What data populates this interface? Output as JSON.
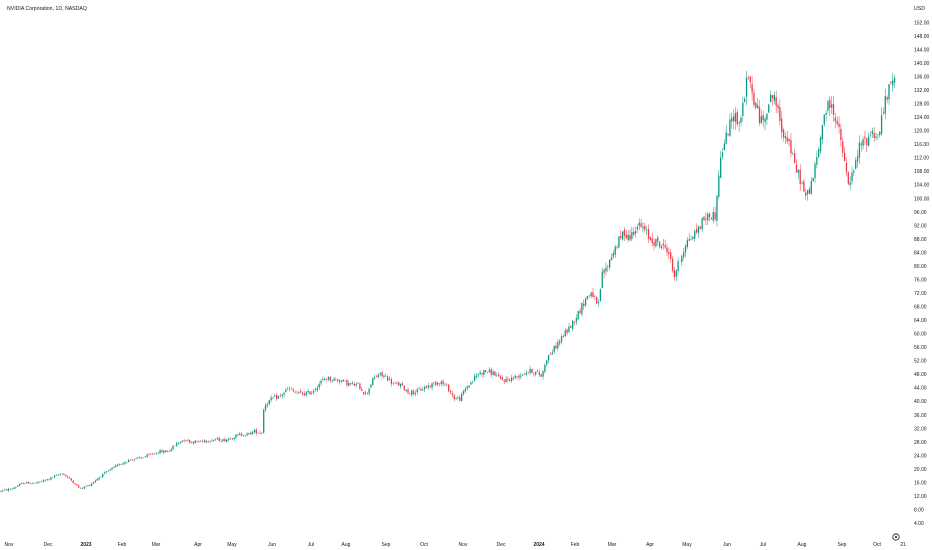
{
  "chart_data": {
    "type": "candlestick",
    "title": "NVIDIA Corporation, 1D, NASDAQ",
    "currency": "USD",
    "colors": {
      "up": "#089981",
      "down": "#f23645",
      "text": "#131722"
    },
    "y_ticks": [
      4,
      8,
      12,
      16,
      20,
      24,
      28,
      32,
      36,
      40,
      44,
      48,
      52,
      56,
      60,
      64,
      68,
      72,
      76,
      80,
      84,
      88,
      92,
      96,
      100,
      104,
      108,
      112,
      116,
      120,
      124,
      128,
      132,
      136,
      140,
      144,
      148,
      152
    ],
    "ylim": [
      2,
      156
    ],
    "x_ticks": [
      "Nov",
      "Dec",
      "2023",
      "Feb",
      "Mar",
      "Apr",
      "May",
      "Jun",
      "Jul",
      "Aug",
      "Sep",
      "Oct",
      "Nov",
      "Dec",
      "2024",
      "Feb",
      "Mar",
      "Apr",
      "May",
      "Jun",
      "Jul",
      "Aug",
      "Sep",
      "Oct",
      "21"
    ],
    "x_bold": [
      "2023",
      "2024"
    ],
    "price_path": [
      [
        0,
        13.5
      ],
      [
        12,
        14.2
      ],
      [
        24,
        16.0
      ],
      [
        36,
        15.8
      ],
      [
        48,
        17.0
      ],
      [
        62,
        18.8
      ],
      [
        72,
        16.5
      ],
      [
        80,
        14.2
      ],
      [
        90,
        15.4
      ],
      [
        100,
        17.8
      ],
      [
        110,
        19.8
      ],
      [
        120,
        21.5
      ],
      [
        130,
        22.8
      ],
      [
        140,
        23.2
      ],
      [
        150,
        24.2
      ],
      [
        160,
        25.2
      ],
      [
        168,
        25.2
      ],
      [
        176,
        27.4
      ],
      [
        184,
        28.8
      ],
      [
        192,
        28.0
      ],
      [
        200,
        28.2
      ],
      [
        208,
        28.5
      ],
      [
        216,
        28.8
      ],
      [
        224,
        28.5
      ],
      [
        232,
        29.4
      ],
      [
        240,
        30.2
      ],
      [
        248,
        30.2
      ],
      [
        254,
        31.2
      ],
      [
        260,
        30.8
      ],
      [
        262,
        31.0
      ],
      [
        264,
        38.8
      ],
      [
        272,
        40.8
      ],
      [
        280,
        41.5
      ],
      [
        288,
        43.8
      ],
      [
        296,
        42.5
      ],
      [
        304,
        42.2
      ],
      [
        312,
        42.8
      ],
      [
        320,
        45.5
      ],
      [
        326,
        47.0
      ],
      [
        332,
        46.5
      ],
      [
        340,
        46.3
      ],
      [
        350,
        45.0
      ],
      [
        358,
        44.8
      ],
      [
        366,
        42.0
      ],
      [
        372,
        46.0
      ],
      [
        378,
        48.0
      ],
      [
        386,
        47.3
      ],
      [
        394,
        45.0
      ],
      [
        400,
        45.0
      ],
      [
        408,
        42.8
      ],
      [
        416,
        42.8
      ],
      [
        424,
        44.0
      ],
      [
        432,
        45.0
      ],
      [
        440,
        46.0
      ],
      [
        448,
        44.0
      ],
      [
        454,
        41.0
      ],
      [
        460,
        40.8
      ],
      [
        466,
        44.0
      ],
      [
        472,
        46.0
      ],
      [
        478,
        48.2
      ],
      [
        486,
        49.0
      ],
      [
        494,
        48.3
      ],
      [
        500,
        46.5
      ],
      [
        506,
        46.3
      ],
      [
        514,
        47.0
      ],
      [
        520,
        47.8
      ],
      [
        526,
        48.8
      ],
      [
        532,
        49.0
      ],
      [
        538,
        48.2
      ],
      [
        542,
        47.5
      ],
      [
        546,
        52.5
      ],
      [
        554,
        55.5
      ],
      [
        562,
        59.0
      ],
      [
        570,
        62.0
      ],
      [
        578,
        66.0
      ],
      [
        586,
        70.5
      ],
      [
        592,
        72.5
      ],
      [
        596,
        69.0
      ],
      [
        598,
        67.0
      ],
      [
        602,
        77.5
      ],
      [
        606,
        79.0
      ],
      [
        612,
        83.5
      ],
      [
        618,
        87.0
      ],
      [
        624,
        90.0
      ],
      [
        630,
        88.5
      ],
      [
        636,
        92.0
      ],
      [
        642,
        91.5
      ],
      [
        650,
        88.0
      ],
      [
        656,
        87.0
      ],
      [
        662,
        86.0
      ],
      [
        668,
        85.0
      ],
      [
        674,
        77.0
      ],
      [
        680,
        82.0
      ],
      [
        686,
        87.0
      ],
      [
        692,
        88.5
      ],
      [
        698,
        91.0
      ],
      [
        704,
        94.0
      ],
      [
        710,
        95.0
      ],
      [
        716,
        95.0
      ],
      [
        718,
        106.0
      ],
      [
        722,
        114.0
      ],
      [
        728,
        120.0
      ],
      [
        734,
        125.0
      ],
      [
        740,
        122.0
      ],
      [
        744,
        130.0
      ],
      [
        748,
        136.0
      ],
      [
        752,
        131.0
      ],
      [
        756,
        127.0
      ],
      [
        762,
        122.0
      ],
      [
        768,
        128.0
      ],
      [
        774,
        131.0
      ],
      [
        778,
        125.0
      ],
      [
        782,
        120.0
      ],
      [
        788,
        118.0
      ],
      [
        794,
        110.0
      ],
      [
        800,
        106.0
      ],
      [
        806,
        100.0
      ],
      [
        812,
        105.0
      ],
      [
        818,
        113.0
      ],
      [
        824,
        125.0
      ],
      [
        830,
        128.0
      ],
      [
        836,
        124.0
      ],
      [
        842,
        115.0
      ],
      [
        848,
        104.0
      ],
      [
        854,
        108.0
      ],
      [
        860,
        116.0
      ],
      [
        866,
        117.0
      ],
      [
        872,
        120.0
      ],
      [
        878,
        118.0
      ],
      [
        884,
        127.0
      ],
      [
        890,
        133.0
      ],
      [
        894,
        136.0
      ],
      [
        896,
        131.0
      ]
    ],
    "grid": false,
    "legend": "none"
  }
}
